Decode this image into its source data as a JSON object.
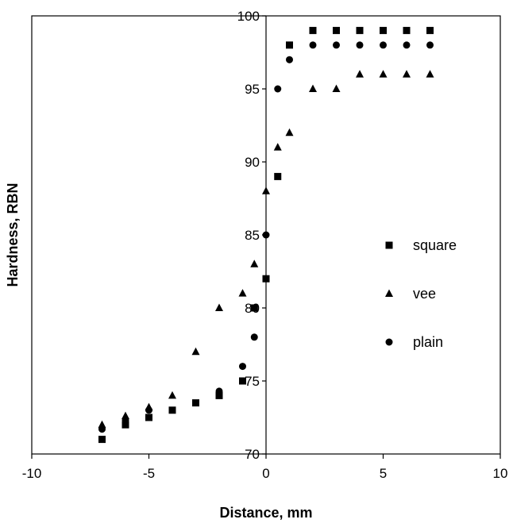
{
  "chart_data": {
    "type": "scatter",
    "title": "",
    "xlabel": "Distance, mm",
    "ylabel": "Hardness, RBN",
    "xlim": [
      -10,
      10
    ],
    "ylim": [
      70,
      100
    ],
    "x_ticks": [
      "-10",
      "-5",
      "0",
      "5",
      "10"
    ],
    "y_ticks": [
      "70",
      "75",
      "80",
      "85",
      "90",
      "95",
      "100"
    ],
    "x_axis_position": "bottom",
    "y_axis_position": "x = 0 (crosses at origin)",
    "grid": false,
    "legend_position": "right-center",
    "series": [
      {
        "name": "square",
        "marker": "square",
        "color": "#000000",
        "points": [
          [
            -7,
            71
          ],
          [
            -6,
            72
          ],
          [
            -5,
            72.5
          ],
          [
            -4,
            73
          ],
          [
            -3,
            73.5
          ],
          [
            -2,
            74
          ],
          [
            -1,
            75
          ],
          [
            -0.5,
            80
          ],
          [
            0,
            82
          ],
          [
            0.5,
            89
          ],
          [
            1,
            98
          ],
          [
            2,
            99
          ],
          [
            3,
            99
          ],
          [
            4,
            99
          ],
          [
            5,
            99
          ],
          [
            6,
            99
          ],
          [
            7,
            99
          ]
        ]
      },
      {
        "name": "vee",
        "marker": "triangle",
        "color": "#000000",
        "points": [
          [
            -7,
            72
          ],
          [
            -6,
            72.6
          ],
          [
            -5,
            73.2
          ],
          [
            -4,
            74
          ],
          [
            -3,
            77
          ],
          [
            -2,
            80
          ],
          [
            -1,
            81
          ],
          [
            -0.5,
            83
          ],
          [
            0,
            88
          ],
          [
            0.5,
            91
          ],
          [
            1,
            92
          ],
          [
            2,
            95
          ],
          [
            3,
            95
          ],
          [
            4,
            96
          ],
          [
            5,
            96
          ],
          [
            6,
            96
          ],
          [
            7,
            96
          ]
        ]
      },
      {
        "name": "plain",
        "marker": "circle",
        "color": "#000000",
        "points": [
          [
            -7,
            71.7
          ],
          [
            -6,
            72.3
          ],
          [
            -5,
            73
          ],
          [
            -2,
            74.3
          ],
          [
            -1,
            76
          ],
          [
            -0.5,
            78
          ],
          [
            0,
            85
          ],
          [
            0.5,
            95
          ],
          [
            1,
            97
          ],
          [
            2,
            98
          ],
          [
            3,
            98
          ],
          [
            4,
            98
          ],
          [
            5,
            98
          ],
          [
            6,
            98
          ],
          [
            7,
            98
          ]
        ]
      }
    ]
  }
}
